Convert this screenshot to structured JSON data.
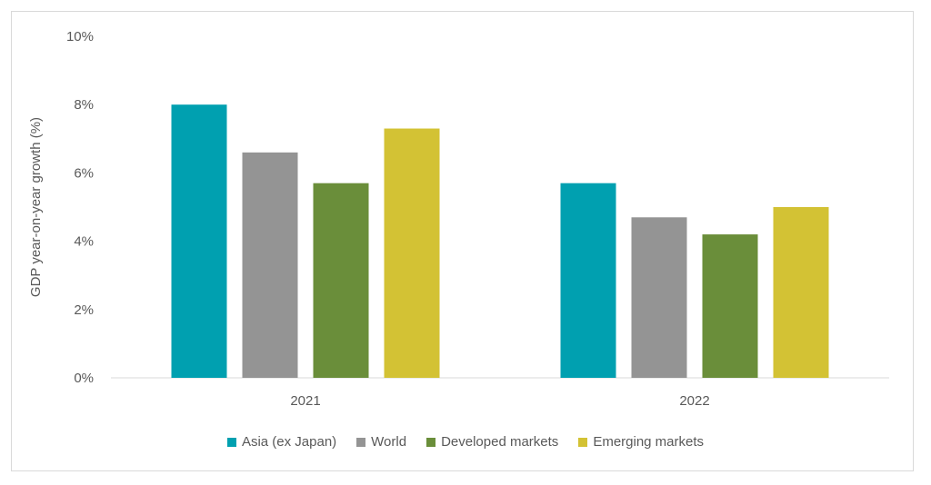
{
  "chart_data": {
    "type": "bar",
    "categories": [
      "2021",
      "2022"
    ],
    "series": [
      {
        "name": "Asia (ex Japan)",
        "values": [
          8.0,
          5.7
        ],
        "color": "#00a0b0"
      },
      {
        "name": "World",
        "values": [
          6.6,
          4.7
        ],
        "color": "#949494"
      },
      {
        "name": "Developed markets",
        "values": [
          5.7,
          4.2
        ],
        "color": "#6a8e3a"
      },
      {
        "name": "Emerging markets",
        "values": [
          7.3,
          5.0
        ],
        "color": "#d3c234"
      }
    ],
    "ylabel": "GDP year-on-year growth (%)",
    "ylim": [
      0,
      10
    ],
    "yticks": [
      "0%",
      "2%",
      "4%",
      "6%",
      "8%",
      "10%"
    ],
    "legend_position": "bottom",
    "grid": false
  }
}
